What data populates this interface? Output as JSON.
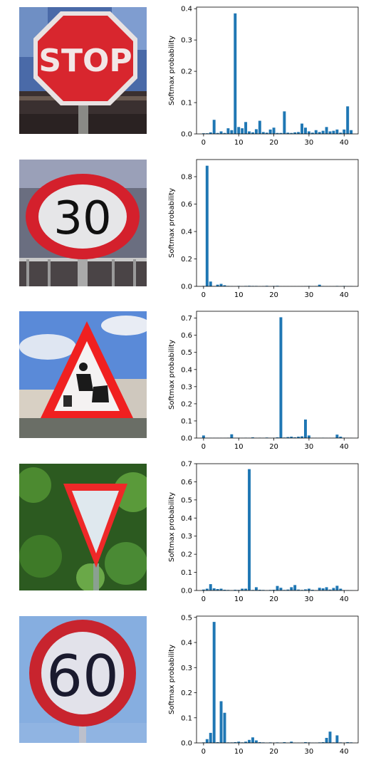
{
  "colors": {
    "bar": "#1f77b4",
    "axis": "#000000"
  },
  "images": [
    {
      "name": "stop-sign-image",
      "sign_text": "STOP"
    },
    {
      "name": "speed-limit-30-image",
      "sign_text": "30"
    },
    {
      "name": "road-work-sign-image",
      "sign_text": ""
    },
    {
      "name": "yield-sign-image",
      "sign_text": ""
    },
    {
      "name": "speed-limit-60-image",
      "sign_text": "60"
    }
  ],
  "chart_data": [
    {
      "type": "bar",
      "ylabel": "Softmax probability",
      "xlim": [
        -2,
        44
      ],
      "ylim": [
        0,
        0.405
      ],
      "xticks": [
        0,
        10,
        20,
        30,
        40
      ],
      "yticks": [
        0.0,
        0.1,
        0.2,
        0.3,
        0.4
      ],
      "ytick_labels": [
        "0.0",
        "0.1",
        "0.2",
        "0.3",
        "0.4"
      ],
      "x": [
        0,
        1,
        2,
        3,
        4,
        5,
        6,
        7,
        8,
        9,
        10,
        11,
        12,
        13,
        14,
        15,
        16,
        17,
        18,
        19,
        20,
        21,
        22,
        23,
        24,
        25,
        26,
        27,
        28,
        29,
        30,
        31,
        32,
        33,
        34,
        35,
        36,
        37,
        38,
        39,
        40,
        41,
        42
      ],
      "values": [
        0.002,
        0.002,
        0.005,
        0.045,
        0.003,
        0.008,
        0.003,
        0.018,
        0.012,
        0.385,
        0.022,
        0.018,
        0.038,
        0.008,
        0.005,
        0.015,
        0.042,
        0.006,
        0.004,
        0.014,
        0.02,
        0.003,
        0.003,
        0.072,
        0.004,
        0.003,
        0.005,
        0.006,
        0.033,
        0.02,
        0.008,
        0.004,
        0.012,
        0.006,
        0.01,
        0.022,
        0.008,
        0.01,
        0.014,
        0.004,
        0.014,
        0.088,
        0.012
      ]
    },
    {
      "type": "bar",
      "ylabel": "Softmax probability",
      "xlim": [
        -2,
        44
      ],
      "ylim": [
        0,
        0.925
      ],
      "xticks": [
        0,
        10,
        20,
        30,
        40
      ],
      "yticks": [
        0.0,
        0.2,
        0.4,
        0.6,
        0.8
      ],
      "ytick_labels": [
        "0.0",
        "0.2",
        "0.4",
        "0.6",
        "0.8"
      ],
      "x": [
        0,
        1,
        2,
        3,
        4,
        5,
        6,
        7,
        8,
        9,
        10,
        11,
        12,
        13,
        14,
        15,
        16,
        17,
        18,
        19,
        20,
        21,
        22,
        23,
        24,
        25,
        26,
        27,
        28,
        29,
        30,
        31,
        32,
        33,
        34,
        35,
        36,
        37,
        38,
        39,
        40,
        41,
        42
      ],
      "values": [
        0.003,
        0.88,
        0.035,
        0.002,
        0.012,
        0.018,
        0.008,
        0.003,
        0.002,
        0.001,
        0.003,
        0.001,
        0.003,
        0.004,
        0.003,
        0.003,
        0.001,
        0.002,
        0.004,
        0.001,
        0.003,
        0.004,
        0.001,
        0.001,
        0.001,
        0.001,
        0.001,
        0.001,
        0.001,
        0.002,
        0.003,
        0.001,
        0.002,
        0.012,
        0.002,
        0.001,
        0.001,
        0.001,
        0.003,
        0.001,
        0.003,
        0.001,
        0.002
      ]
    },
    {
      "type": "bar",
      "ylabel": "Softmax probability",
      "xlim": [
        -2,
        44
      ],
      "ylim": [
        0,
        0.74
      ],
      "xticks": [
        0,
        10,
        20,
        30,
        40
      ],
      "yticks": [
        0.0,
        0.1,
        0.2,
        0.3,
        0.4,
        0.5,
        0.6,
        0.7
      ],
      "ytick_labels": [
        "0.0",
        "0.1",
        "0.2",
        "0.3",
        "0.4",
        "0.5",
        "0.6",
        "0.7"
      ],
      "x": [
        0,
        1,
        2,
        3,
        4,
        5,
        6,
        7,
        8,
        9,
        10,
        11,
        12,
        13,
        14,
        15,
        16,
        17,
        18,
        19,
        20,
        21,
        22,
        23,
        24,
        25,
        26,
        27,
        28,
        29,
        30,
        31,
        32,
        33,
        34,
        35,
        36,
        37,
        38,
        39,
        40,
        41,
        42
      ],
      "values": [
        0.015,
        0.001,
        0.001,
        0.001,
        0.001,
        0.001,
        0.001,
        0.002,
        0.022,
        0.001,
        0.002,
        0.001,
        0.002,
        0.001,
        0.004,
        0.001,
        0.002,
        0.001,
        0.003,
        0.001,
        0.002,
        0.004,
        0.705,
        0.003,
        0.006,
        0.008,
        0.004,
        0.008,
        0.01,
        0.108,
        0.015,
        0.001,
        0.001,
        0.001,
        0.002,
        0.001,
        0.001,
        0.001,
        0.02,
        0.008,
        0.002,
        0.001,
        0.001
      ]
    },
    {
      "type": "bar",
      "ylabel": "Softmax probability",
      "xlim": [
        -2,
        44
      ],
      "ylim": [
        0,
        0.7
      ],
      "xticks": [
        0,
        10,
        20,
        30,
        40
      ],
      "yticks": [
        0.0,
        0.1,
        0.2,
        0.3,
        0.4,
        0.5,
        0.6,
        0.7
      ],
      "ytick_labels": [
        "0.0",
        "0.1",
        "0.2",
        "0.3",
        "0.4",
        "0.5",
        "0.6",
        "0.7"
      ],
      "x": [
        0,
        1,
        2,
        3,
        4,
        5,
        6,
        7,
        8,
        9,
        10,
        11,
        12,
        13,
        14,
        15,
        16,
        17,
        18,
        19,
        20,
        21,
        22,
        23,
        24,
        25,
        26,
        27,
        28,
        29,
        30,
        31,
        32,
        33,
        34,
        35,
        36,
        37,
        38,
        39,
        40,
        41,
        42
      ],
      "values": [
        0.005,
        0.01,
        0.035,
        0.012,
        0.008,
        0.01,
        0.004,
        0.003,
        0.002,
        0.004,
        0.003,
        0.01,
        0.01,
        0.67,
        0.003,
        0.018,
        0.004,
        0.003,
        0.002,
        0.003,
        0.004,
        0.025,
        0.015,
        0.003,
        0.005,
        0.018,
        0.03,
        0.005,
        0.003,
        0.006,
        0.01,
        0.004,
        0.002,
        0.015,
        0.012,
        0.018,
        0.005,
        0.014,
        0.026,
        0.01,
        0.002,
        0.002,
        0.001
      ]
    },
    {
      "type": "bar",
      "ylabel": "Softmax probability",
      "xlim": [
        -2,
        44
      ],
      "ylim": [
        0,
        0.505
      ],
      "xticks": [
        0,
        10,
        20,
        30,
        40
      ],
      "yticks": [
        0.0,
        0.1,
        0.2,
        0.3,
        0.4,
        0.5
      ],
      "ytick_labels": [
        "0.0",
        "0.1",
        "0.2",
        "0.3",
        "0.4",
        "0.5"
      ],
      "x": [
        0,
        1,
        2,
        3,
        4,
        5,
        6,
        7,
        8,
        9,
        10,
        11,
        12,
        13,
        14,
        15,
        16,
        17,
        18,
        19,
        20,
        21,
        22,
        23,
        24,
        25,
        26,
        27,
        28,
        29,
        30,
        31,
        32,
        33,
        34,
        35,
        36,
        37,
        38,
        39,
        40,
        41,
        42
      ],
      "values": [
        0.002,
        0.015,
        0.04,
        0.482,
        0.003,
        0.166,
        0.12,
        0.002,
        0.002,
        0.003,
        0.005,
        0.002,
        0.005,
        0.012,
        0.022,
        0.01,
        0.003,
        0.002,
        0.001,
        0.002,
        0.001,
        0.002,
        0.001,
        0.003,
        0.001,
        0.005,
        0.001,
        0.001,
        0.001,
        0.003,
        0.002,
        0.001,
        0.001,
        0.002,
        0.003,
        0.02,
        0.045,
        0.002,
        0.03,
        0.002,
        0.001,
        0.003,
        0.002
      ]
    }
  ]
}
